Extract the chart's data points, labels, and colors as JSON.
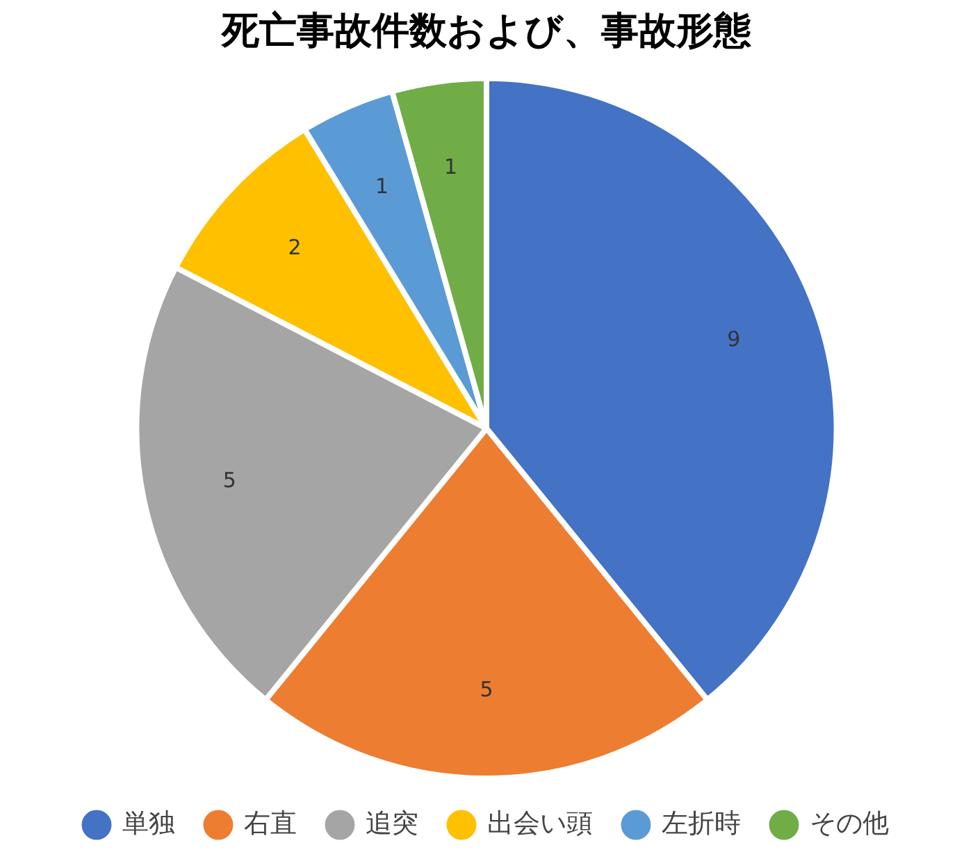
{
  "chart_data": {
    "type": "pie",
    "title": "死亡事故件数および、事故形態",
    "categories": [
      "単独",
      "右直",
      "追突",
      "出会い頭",
      "左折時",
      "その他"
    ],
    "values": [
      9,
      5,
      5,
      2,
      1,
      1
    ],
    "colors": [
      "#4472c4",
      "#ed7d31",
      "#a5a5a5",
      "#ffc000",
      "#5b9bd5",
      "#70ad47"
    ],
    "data_labels": true,
    "legend": "bottom"
  }
}
